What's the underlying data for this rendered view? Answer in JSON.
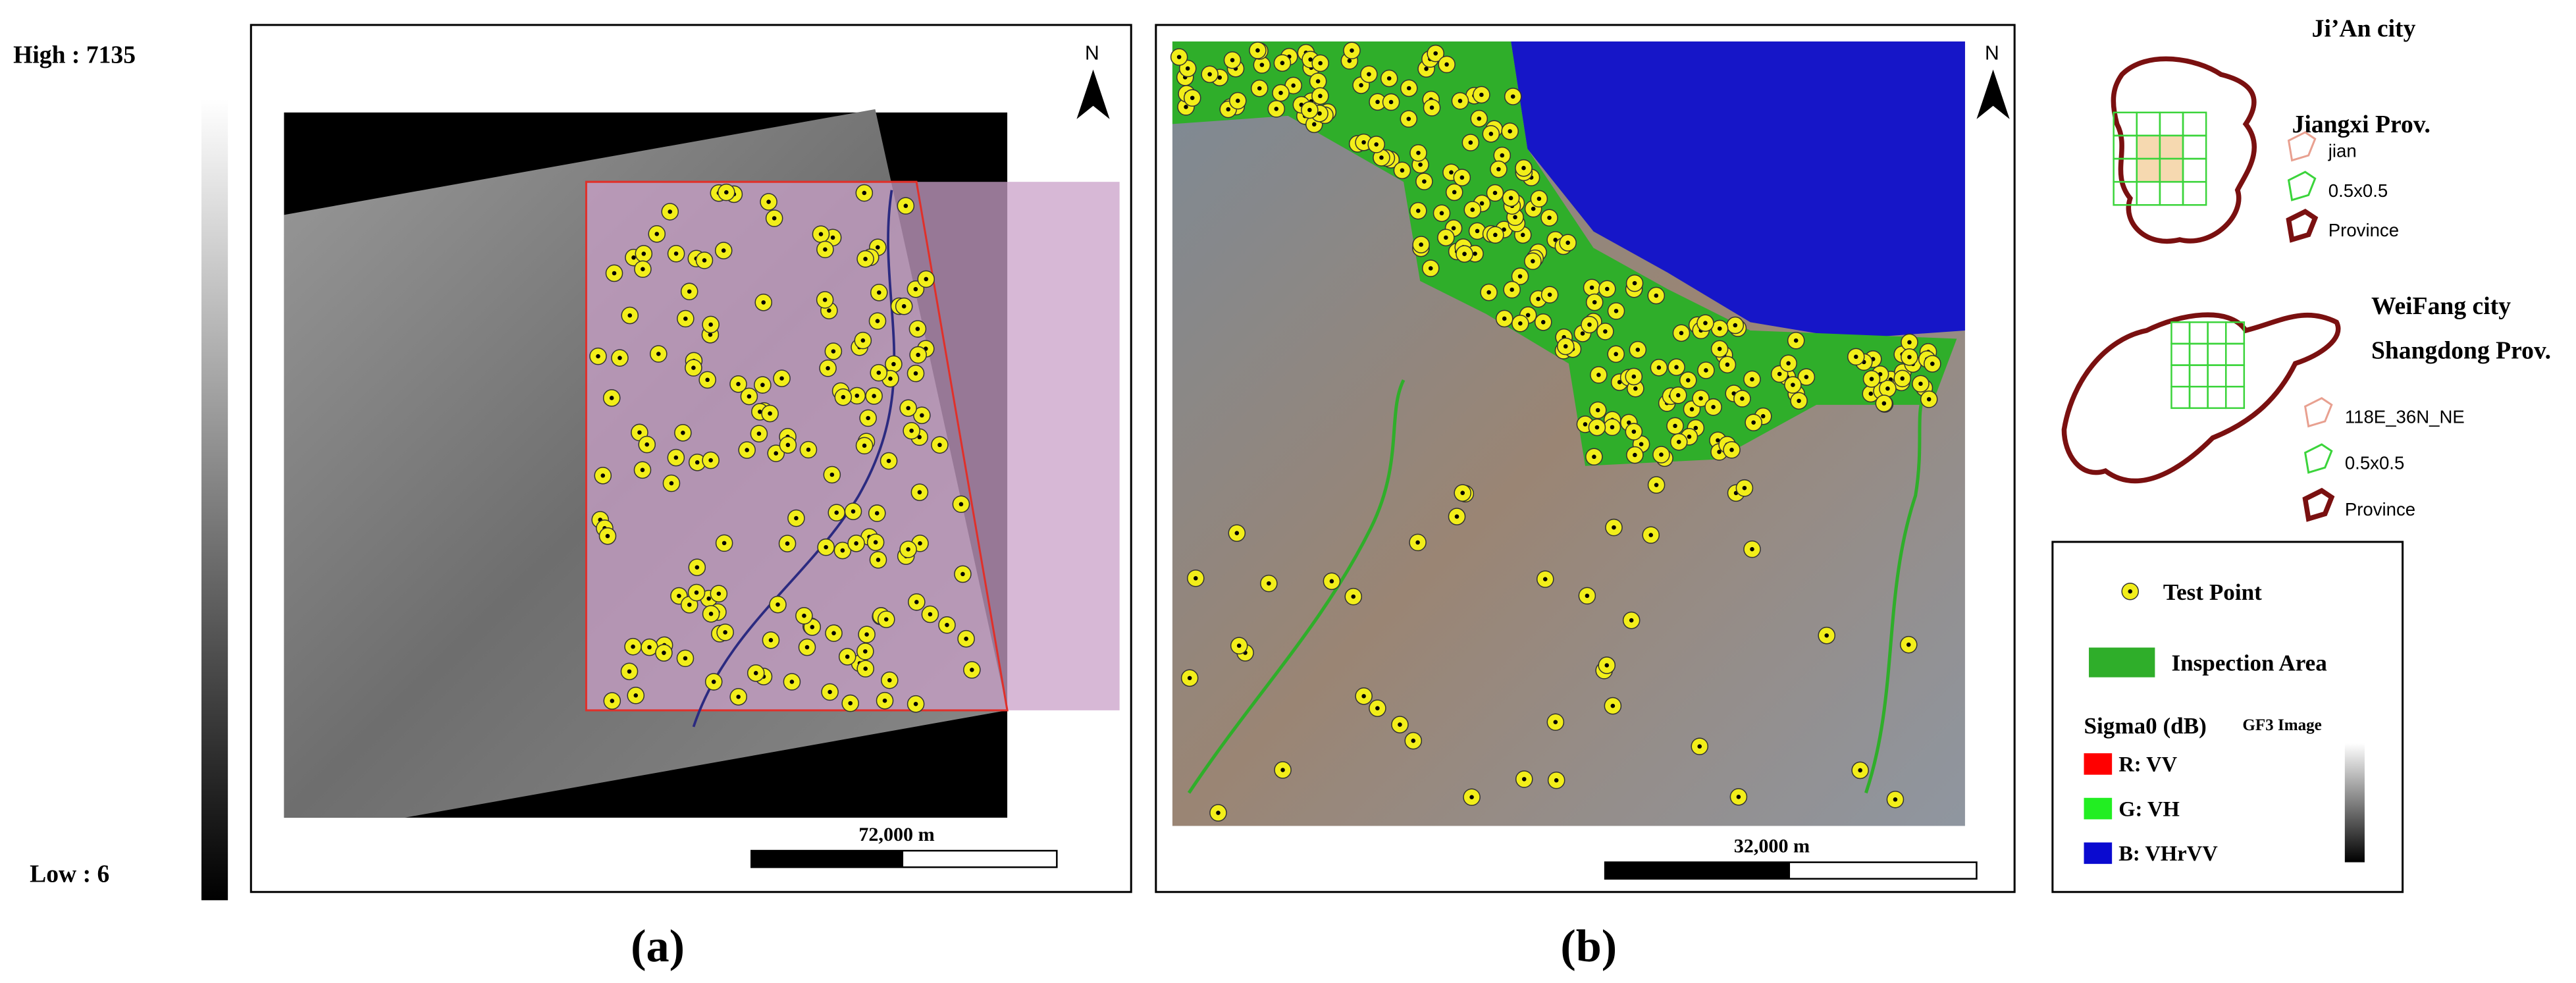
{
  "colorbar": {
    "high": "High : 7135",
    "low": "Low : 6"
  },
  "panel_a": {
    "label": "(a)",
    "north": "N",
    "scale": "72,000 m"
  },
  "panel_b": {
    "label": "(b)",
    "north": "N",
    "scale": "32,000 m"
  },
  "inset_jian": {
    "city": "Ji’An city",
    "province": "Jiangxi Prov.",
    "legend": [
      "jian",
      "0.5x0.5",
      "Province"
    ]
  },
  "inset_weifang": {
    "city": "WeiFang city",
    "province": "Shangdong Prov.",
    "legend": [
      "118E_36N_NE",
      "0.5x0.5",
      "Province"
    ]
  },
  "legend": {
    "test_point": "Test Point",
    "inspection_area": "Inspection Area",
    "sigma_title": "Sigma0 (dB)",
    "gf3": "GF3 Image",
    "channels": [
      "R: VV",
      "G: VH",
      "B: VHrVV"
    ]
  }
}
